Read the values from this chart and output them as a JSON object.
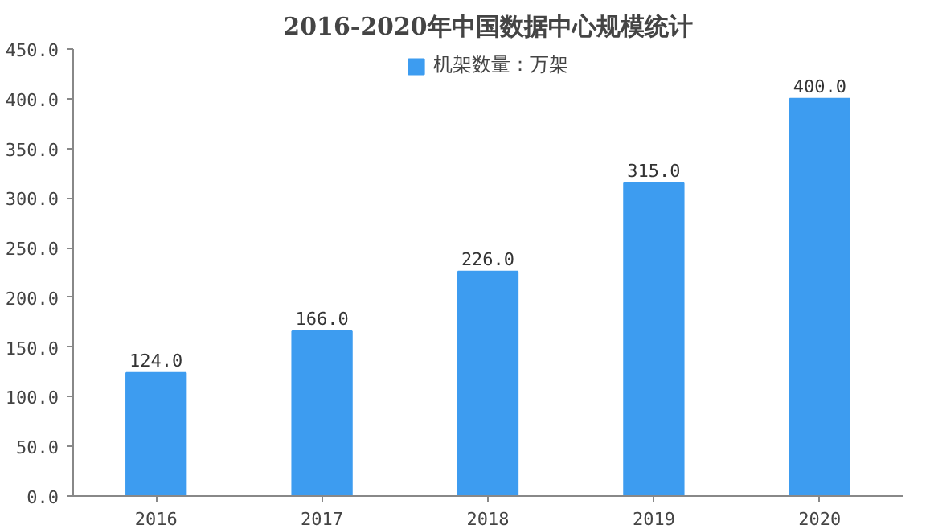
{
  "chart_data": {
    "type": "bar",
    "title": "2016-2020年中国数据中心规模统计",
    "categories": [
      "2016",
      "2017",
      "2018",
      "2019",
      "2020"
    ],
    "series": [
      {
        "name": "机架数量：万架",
        "color": "#3d9cf0",
        "values": [
          124,
          166,
          226,
          315,
          400
        ]
      }
    ],
    "value_labels": [
      "124.0",
      "166.0",
      "226.0",
      "315.0",
      "400.0"
    ],
    "ylim": [
      0,
      450
    ],
    "yticks": [
      {
        "value": 0,
        "label": "0.0"
      },
      {
        "value": 50,
        "label": "50.0"
      },
      {
        "value": 100,
        "label": "100.0"
      },
      {
        "value": 150,
        "label": "150.0"
      },
      {
        "value": 200,
        "label": "200.0"
      },
      {
        "value": 250,
        "label": "250.0"
      },
      {
        "value": 300,
        "label": "300.0"
      },
      {
        "value": 350,
        "label": "350.0"
      },
      {
        "value": 400,
        "label": "400.0"
      },
      {
        "value": 450,
        "label": "450.0"
      }
    ],
    "grid": false,
    "legend": "top"
  }
}
